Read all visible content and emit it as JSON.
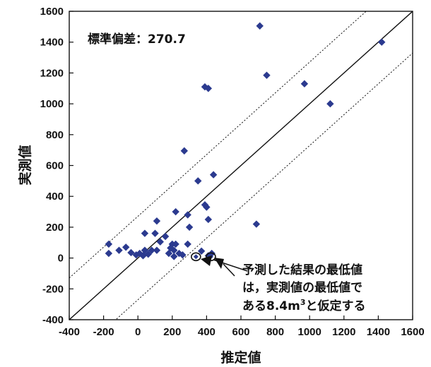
{
  "chart_data": {
    "type": "scatter",
    "title": "",
    "xlabel": "推定値",
    "ylabel": "実測値",
    "xlim": [
      -400,
      1600
    ],
    "ylim": [
      -400,
      1600
    ],
    "x_ticks": [
      -400,
      -200,
      0,
      200,
      400,
      600,
      800,
      1000,
      1200,
      1400,
      1600
    ],
    "y_ticks": [
      -400,
      -200,
      0,
      200,
      400,
      600,
      800,
      1000,
      1200,
      1400,
      1600
    ],
    "x_tick_labels": [
      "-400",
      "-200",
      "0",
      "200",
      "400",
      "600",
      "800",
      "1000",
      "1200",
      "1400",
      "1600"
    ],
    "y_tick_labels": [
      "-400",
      "-200",
      "0",
      "200",
      "400",
      "600",
      "800",
      "1000",
      "1200",
      "1400",
      "1600"
    ],
    "grid": false,
    "stat_label": "標準偏差：270.7",
    "reference_lines": [
      {
        "name": "1:1",
        "offset": 0,
        "style": "solid"
      },
      {
        "name": "+SD",
        "offset": 270.7,
        "style": "dotted"
      },
      {
        "name": "-SD",
        "offset": -270.7,
        "style": "dotted"
      }
    ],
    "marker_color": "#2b3a8f",
    "points": [
      {
        "x": 710,
        "y": 1505
      },
      {
        "x": 1420,
        "y": 1400
      },
      {
        "x": 750,
        "y": 1185
      },
      {
        "x": 970,
        "y": 1130
      },
      {
        "x": 390,
        "y": 1110
      },
      {
        "x": 410,
        "y": 1100
      },
      {
        "x": 1120,
        "y": 1000
      },
      {
        "x": 270,
        "y": 695
      },
      {
        "x": 440,
        "y": 540
      },
      {
        "x": 350,
        "y": 500
      },
      {
        "x": 390,
        "y": 345
      },
      {
        "x": 400,
        "y": 330
      },
      {
        "x": 220,
        "y": 300
      },
      {
        "x": 290,
        "y": 280
      },
      {
        "x": 410,
        "y": 250
      },
      {
        "x": 110,
        "y": 240
      },
      {
        "x": 690,
        "y": 220
      },
      {
        "x": 300,
        "y": 200
      },
      {
        "x": 40,
        "y": 160
      },
      {
        "x": 100,
        "y": 160
      },
      {
        "x": 160,
        "y": 140
      },
      {
        "x": 130,
        "y": 105
      },
      {
        "x": -170,
        "y": 90
      },
      {
        "x": 200,
        "y": 90
      },
      {
        "x": 220,
        "y": 90
      },
      {
        "x": 290,
        "y": 90
      },
      {
        "x": -70,
        "y": 70
      },
      {
        "x": 190,
        "y": 65
      },
      {
        "x": -110,
        "y": 50
      },
      {
        "x": 40,
        "y": 50
      },
      {
        "x": 80,
        "y": 50
      },
      {
        "x": 110,
        "y": 50
      },
      {
        "x": 210,
        "y": 50
      },
      {
        "x": 370,
        "y": 45
      },
      {
        "x": -40,
        "y": 35
      },
      {
        "x": -170,
        "y": 30
      },
      {
        "x": 10,
        "y": 30
      },
      {
        "x": 180,
        "y": 30
      },
      {
        "x": 240,
        "y": 30
      },
      {
        "x": 430,
        "y": 30
      },
      {
        "x": 60,
        "y": 25
      },
      {
        "x": -10,
        "y": 20
      },
      {
        "x": 30,
        "y": 15
      },
      {
        "x": 260,
        "y": 20
      },
      {
        "x": 410,
        "y": 15
      },
      {
        "x": 210,
        "y": 10
      }
    ],
    "highlighted_points": [
      {
        "x": 338,
        "y": 8.4
      },
      {
        "x": 425,
        "y": 8.4
      }
    ],
    "annotation": {
      "lines": [
        "予測した結果の最低値",
        "は，実測値の最低値で",
        "ある8.4m",
        "と仮定する"
      ],
      "superscript": "3"
    }
  }
}
